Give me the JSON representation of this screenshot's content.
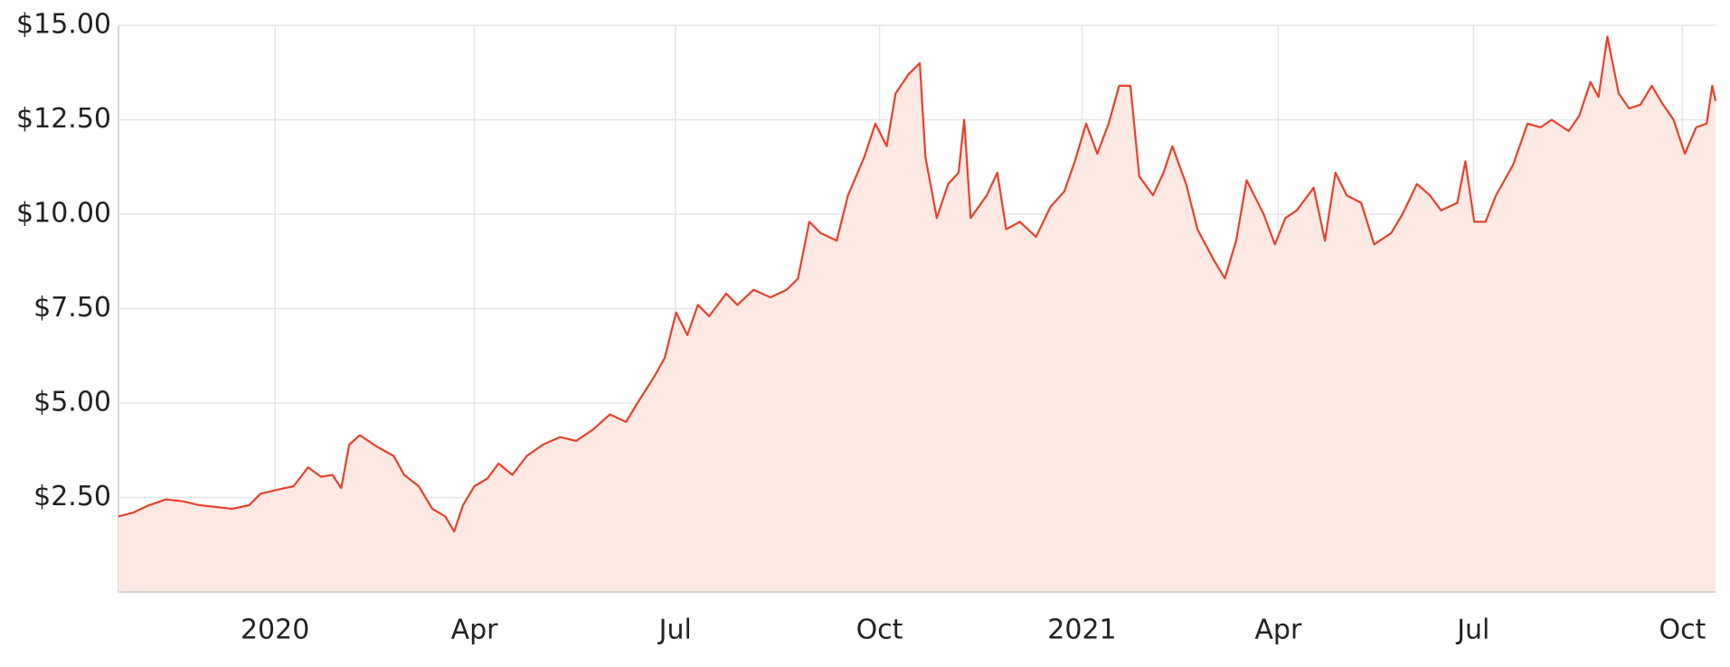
{
  "chart_data": {
    "type": "area",
    "color": "#e8412c",
    "fill": "#fde8e4",
    "grid": true,
    "xlim": [
      2019.806,
      2021.785
    ],
    "xticks": [
      {
        "value": 2020,
        "label": "2020"
      },
      {
        "value": 2020.247,
        "label": "Apr"
      },
      {
        "value": 2020.496,
        "label": "Jul"
      },
      {
        "value": 2020.749,
        "label": "Oct"
      },
      {
        "value": 2021,
        "label": "2021"
      },
      {
        "value": 2021.243,
        "label": "Apr"
      },
      {
        "value": 2021.485,
        "label": "Jul"
      },
      {
        "value": 2021.744,
        "label": "Oct"
      }
    ],
    "ylim": [
      0,
      15
    ],
    "yticks": [
      {
        "value": 2.5,
        "label": "$2.50"
      },
      {
        "value": 5,
        "label": "$5.00"
      },
      {
        "value": 7.5,
        "label": "$7.50"
      },
      {
        "value": 10,
        "label": "$10.00"
      },
      {
        "value": 12.5,
        "label": "$12.50"
      },
      {
        "value": 15,
        "label": "$15.00"
      }
    ],
    "x": [
      2019.806,
      2019.824,
      2019.844,
      2019.865,
      2019.886,
      2019.906,
      2019.927,
      2019.947,
      2019.968,
      2019.982,
      2020.002,
      2020.023,
      2020.041,
      2020.057,
      2020.071,
      2020.082,
      2020.092,
      2020.105,
      2020.126,
      2020.147,
      2020.16,
      2020.178,
      2020.195,
      2020.211,
      2020.222,
      2020.233,
      2020.247,
      2020.263,
      2020.277,
      2020.294,
      2020.312,
      2020.332,
      2020.353,
      2020.373,
      2020.394,
      2020.415,
      2020.435,
      2020.449,
      2020.47,
      2020.483,
      2020.497,
      2020.511,
      2020.524,
      2020.538,
      2020.559,
      2020.573,
      2020.593,
      2020.614,
      2020.634,
      2020.648,
      2020.662,
      2020.676,
      2020.696,
      2020.71,
      2020.73,
      2020.744,
      2020.758,
      2020.769,
      2020.785,
      2020.799,
      2020.806,
      2020.82,
      2020.834,
      2020.847,
      2020.854,
      2020.862,
      2020.882,
      2020.895,
      2020.906,
      2020.923,
      2020.943,
      2020.961,
      2020.978,
      2020.991,
      2021.005,
      2021.019,
      2021.033,
      2021.046,
      2021.06,
      2021.071,
      2021.088,
      2021.101,
      2021.112,
      2021.129,
      2021.143,
      2021.163,
      2021.177,
      2021.191,
      2021.204,
      2021.225,
      2021.239,
      2021.252,
      2021.266,
      2021.287,
      2021.301,
      2021.314,
      2021.328,
      2021.346,
      2021.362,
      2021.383,
      2021.397,
      2021.415,
      2021.431,
      2021.445,
      2021.465,
      2021.475,
      2021.486,
      2021.5,
      2021.513,
      2021.534,
      2021.552,
      2021.568,
      2021.582,
      2021.603,
      2021.616,
      2021.63,
      2021.64,
      2021.651,
      2021.665,
      2021.678,
      2021.692,
      2021.706,
      2021.72,
      2021.733,
      2021.747,
      2021.761,
      2021.774,
      2021.781,
      2021.785
    ],
    "values": [
      2.0,
      2.1,
      2.3,
      2.45,
      2.4,
      2.3,
      2.25,
      2.2,
      2.3,
      2.6,
      2.7,
      2.8,
      3.3,
      3.05,
      3.1,
      2.75,
      3.9,
      4.15,
      3.85,
      3.6,
      3.1,
      2.8,
      2.2,
      2.0,
      1.6,
      2.3,
      2.8,
      3.0,
      3.4,
      3.1,
      3.6,
      3.9,
      4.1,
      4.0,
      4.3,
      4.7,
      4.5,
      5.0,
      5.7,
      6.2,
      7.4,
      6.8,
      7.6,
      7.3,
      7.9,
      7.6,
      8.0,
      7.8,
      8.0,
      8.3,
      9.8,
      9.5,
      9.3,
      10.5,
      11.5,
      12.4,
      11.8,
      13.2,
      13.7,
      14.0,
      11.5,
      9.9,
      10.8,
      11.1,
      12.5,
      9.9,
      10.5,
      11.1,
      9.6,
      9.8,
      9.4,
      10.2,
      10.6,
      11.4,
      12.4,
      11.6,
      12.4,
      13.4,
      13.4,
      11.0,
      10.5,
      11.1,
      11.8,
      10.8,
      9.6,
      8.8,
      8.3,
      9.3,
      10.9,
      10.0,
      9.2,
      9.9,
      10.1,
      10.7,
      9.3,
      11.1,
      10.5,
      10.3,
      9.2,
      9.5,
      10.0,
      10.8,
      10.5,
      10.1,
      10.3,
      11.4,
      9.8,
      9.8,
      10.5,
      11.3,
      12.4,
      12.3,
      12.5,
      12.2,
      12.6,
      13.5,
      13.1,
      14.7,
      13.2,
      12.8,
      12.9,
      13.4,
      12.9,
      12.5,
      11.6,
      12.3,
      12.4,
      13.4,
      13.0
    ]
  }
}
